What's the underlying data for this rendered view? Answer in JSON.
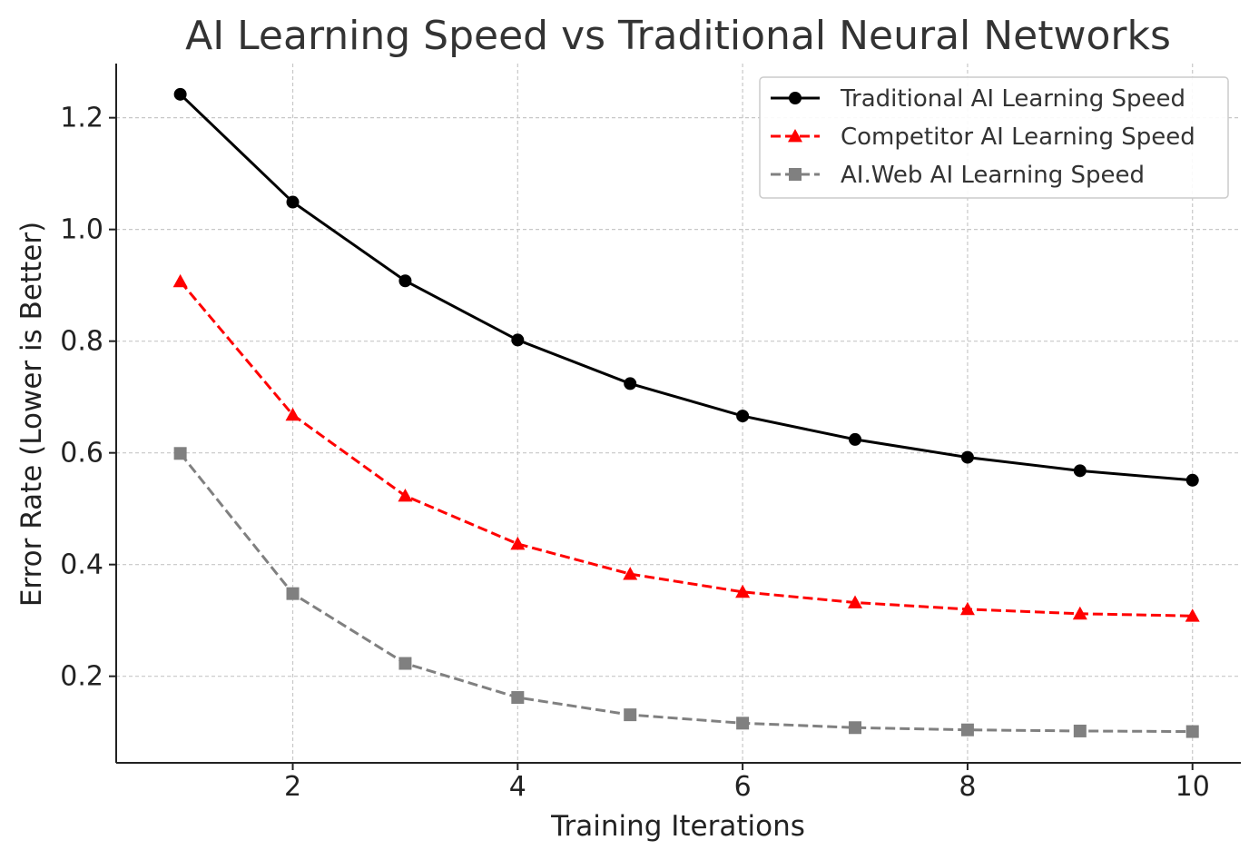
{
  "chart_data": {
    "type": "line",
    "title": "AI Learning Speed vs Traditional Neural Networks",
    "xlabel": "Training Iterations",
    "ylabel": "Error Rate (Lower is Better)",
    "x": [
      1,
      2,
      3,
      4,
      5,
      6,
      7,
      8,
      9,
      10
    ],
    "xlim": [
      0.43,
      10.43
    ],
    "ylim": [
      0.045,
      1.297
    ],
    "xticks": [
      2,
      4,
      6,
      8,
      10
    ],
    "yticks": [
      0.2,
      0.4,
      0.6,
      0.8,
      1.0,
      1.2
    ],
    "xtick_labels": [
      "2",
      "4",
      "6",
      "8",
      "10"
    ],
    "ytick_labels": [
      "0.2",
      "0.4",
      "0.6",
      "0.8",
      "1.0",
      "1.2"
    ],
    "grid": true,
    "legend_position": "top-right",
    "series": [
      {
        "name": "Traditional AI Learning Speed",
        "color": "#000000",
        "line_style": "solid",
        "marker": "circle",
        "values": [
          1.242,
          1.049,
          0.908,
          0.802,
          0.724,
          0.666,
          0.624,
          0.592,
          0.568,
          0.551
        ]
      },
      {
        "name": "Competitor AI Learning Speed",
        "color": "#ff0000",
        "line_style": "dashed",
        "marker": "triangle",
        "values": [
          0.907,
          0.668,
          0.523,
          0.437,
          0.383,
          0.351,
          0.332,
          0.32,
          0.312,
          0.308
        ]
      },
      {
        "name": "AI.Web AI Learning Speed",
        "color": "#808080",
        "line_style": "dashed",
        "marker": "square",
        "values": [
          0.599,
          0.348,
          0.223,
          0.162,
          0.131,
          0.116,
          0.108,
          0.104,
          0.102,
          0.101
        ]
      }
    ]
  }
}
